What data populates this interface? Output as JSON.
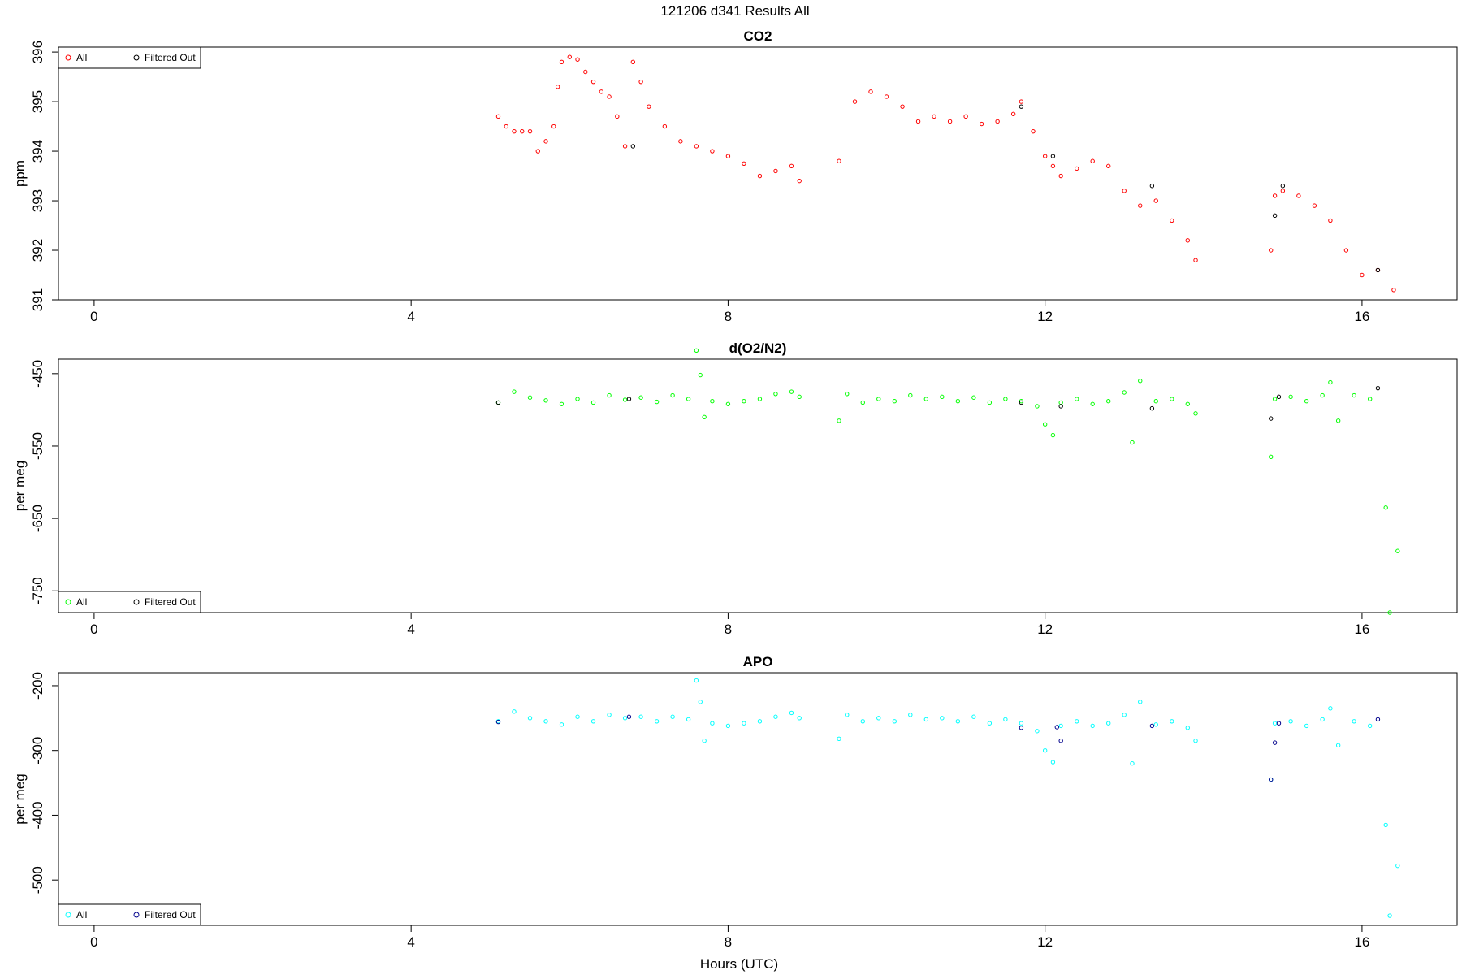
{
  "main_title": "121206   d341   Results All",
  "xlabel": "Hours (UTC)",
  "chart_data": [
    {
      "type": "scatter",
      "title": "CO2",
      "ylabel": "ppm",
      "xlim": [
        -0.45,
        17.2
      ],
      "ylim": [
        391,
        396.1
      ],
      "xticks": [
        0,
        4,
        8,
        12,
        16
      ],
      "xtick_labels": [
        "0",
        "4",
        "8",
        "12",
        "16"
      ],
      "yticks": [
        391,
        392,
        393,
        394,
        395,
        396
      ],
      "ytick_labels": [
        "391",
        "392",
        "393",
        "394",
        "395",
        "396"
      ],
      "legend_position": "top-left",
      "series": [
        {
          "name": "All",
          "color": "#ff0000",
          "points": [
            [
              5.1,
              394.7
            ],
            [
              5.2,
              394.5
            ],
            [
              5.3,
              394.4
            ],
            [
              5.4,
              394.4
            ],
            [
              5.5,
              394.4
            ],
            [
              5.6,
              394.0
            ],
            [
              5.7,
              394.2
            ],
            [
              5.8,
              394.5
            ],
            [
              5.85,
              395.3
            ],
            [
              5.9,
              395.8
            ],
            [
              6.0,
              395.9
            ],
            [
              6.1,
              395.85
            ],
            [
              6.2,
              395.6
            ],
            [
              6.3,
              395.4
            ],
            [
              6.4,
              395.2
            ],
            [
              6.5,
              395.1
            ],
            [
              6.6,
              394.7
            ],
            [
              6.7,
              394.1
            ],
            [
              6.8,
              395.8
            ],
            [
              6.9,
              395.4
            ],
            [
              7.0,
              394.9
            ],
            [
              7.2,
              394.5
            ],
            [
              7.4,
              394.2
            ],
            [
              7.6,
              394.1
            ],
            [
              7.8,
              394.0
            ],
            [
              8.0,
              393.9
            ],
            [
              8.2,
              393.75
            ],
            [
              8.4,
              393.5
            ],
            [
              8.6,
              393.6
            ],
            [
              8.8,
              393.7
            ],
            [
              8.9,
              393.4
            ],
            [
              9.4,
              393.8
            ],
            [
              9.6,
              395.0
            ],
            [
              9.8,
              395.2
            ],
            [
              10.0,
              395.1
            ],
            [
              10.2,
              394.9
            ],
            [
              10.4,
              394.6
            ],
            [
              10.6,
              394.7
            ],
            [
              10.8,
              394.6
            ],
            [
              11.0,
              394.7
            ],
            [
              11.2,
              394.55
            ],
            [
              11.4,
              394.6
            ],
            [
              11.6,
              394.75
            ],
            [
              11.7,
              395.0
            ],
            [
              11.85,
              394.4
            ],
            [
              12.0,
              393.9
            ],
            [
              12.1,
              393.7
            ],
            [
              12.2,
              393.5
            ],
            [
              12.4,
              393.65
            ],
            [
              12.6,
              393.8
            ],
            [
              12.8,
              393.7
            ],
            [
              13.0,
              393.2
            ],
            [
              13.2,
              392.9
            ],
            [
              13.4,
              393.0
            ],
            [
              13.6,
              392.6
            ],
            [
              13.8,
              392.2
            ],
            [
              13.9,
              391.8
            ],
            [
              14.85,
              392.0
            ],
            [
              14.9,
              393.1
            ],
            [
              15.0,
              393.2
            ],
            [
              15.2,
              393.1
            ],
            [
              15.4,
              392.9
            ],
            [
              15.6,
              392.6
            ],
            [
              15.8,
              392.0
            ],
            [
              16.0,
              391.5
            ],
            [
              16.2,
              391.6
            ],
            [
              16.4,
              391.2
            ]
          ]
        },
        {
          "name": "Filtered Out",
          "color": "#000000",
          "points": [
            [
              6.8,
              394.1
            ],
            [
              11.7,
              394.9
            ],
            [
              12.1,
              393.9
            ],
            [
              13.35,
              393.3
            ],
            [
              14.9,
              392.7
            ],
            [
              15.0,
              393.3
            ],
            [
              16.2,
              391.6
            ]
          ]
        }
      ]
    },
    {
      "type": "scatter",
      "title": "d(O2/N2)",
      "ylabel": "per meg",
      "xlim": [
        -0.45,
        17.2
      ],
      "ylim": [
        -780,
        -430
      ],
      "xticks": [
        0,
        4,
        8,
        12,
        16
      ],
      "xtick_labels": [
        "0",
        "4",
        "8",
        "12",
        "16"
      ],
      "yticks": [
        -750,
        -650,
        -550,
        -450
      ],
      "ytick_labels": [
        "-750",
        "-650",
        "-550",
        "-450"
      ],
      "legend_position": "bottom-left",
      "series": [
        {
          "name": "All",
          "color": "#00ff00",
          "points": [
            [
              5.1,
              -490
            ],
            [
              5.3,
              -475
            ],
            [
              5.5,
              -483
            ],
            [
              5.7,
              -487
            ],
            [
              5.9,
              -492
            ],
            [
              6.1,
              -485
            ],
            [
              6.3,
              -490
            ],
            [
              6.5,
              -480
            ],
            [
              6.7,
              -486
            ],
            [
              6.9,
              -483
            ],
            [
              7.1,
              -489
            ],
            [
              7.3,
              -480
            ],
            [
              7.5,
              -485
            ],
            [
              7.6,
              -418
            ],
            [
              7.65,
              -452
            ],
            [
              7.7,
              -510
            ],
            [
              7.8,
              -488
            ],
            [
              8.0,
              -492
            ],
            [
              8.2,
              -488
            ],
            [
              8.4,
              -485
            ],
            [
              8.6,
              -478
            ],
            [
              8.8,
              -475
            ],
            [
              8.9,
              -482
            ],
            [
              9.4,
              -515
            ],
            [
              9.5,
              -478
            ],
            [
              9.7,
              -490
            ],
            [
              9.9,
              -485
            ],
            [
              10.1,
              -488
            ],
            [
              10.3,
              -480
            ],
            [
              10.5,
              -485
            ],
            [
              10.7,
              -482
            ],
            [
              10.9,
              -488
            ],
            [
              11.1,
              -483
            ],
            [
              11.3,
              -490
            ],
            [
              11.5,
              -485
            ],
            [
              11.7,
              -488
            ],
            [
              11.9,
              -495
            ],
            [
              12.0,
              -520
            ],
            [
              12.1,
              -535
            ],
            [
              12.2,
              -490
            ],
            [
              12.4,
              -485
            ],
            [
              12.6,
              -492
            ],
            [
              12.8,
              -488
            ],
            [
              13.0,
              -476
            ],
            [
              13.1,
              -545
            ],
            [
              13.2,
              -460
            ],
            [
              13.4,
              -488
            ],
            [
              13.6,
              -485
            ],
            [
              13.8,
              -492
            ],
            [
              13.9,
              -505
            ],
            [
              14.85,
              -565
            ],
            [
              14.9,
              -485
            ],
            [
              15.1,
              -482
            ],
            [
              15.3,
              -488
            ],
            [
              15.5,
              -480
            ],
            [
              15.6,
              -462
            ],
            [
              15.7,
              -515
            ],
            [
              15.9,
              -480
            ],
            [
              16.1,
              -485
            ],
            [
              16.3,
              -635
            ],
            [
              16.35,
              -780
            ],
            [
              16.45,
              -695
            ]
          ]
        },
        {
          "name": "Filtered Out",
          "color": "#000000",
          "points": [
            [
              5.1,
              -490
            ],
            [
              6.75,
              -485
            ],
            [
              11.7,
              -490
            ],
            [
              12.2,
              -495
            ],
            [
              13.35,
              -498
            ],
            [
              14.85,
              -512
            ],
            [
              14.95,
              -482
            ],
            [
              16.2,
              -470
            ]
          ]
        }
      ]
    },
    {
      "type": "scatter",
      "title": "APO",
      "ylabel": "per meg",
      "xlim": [
        -0.45,
        17.2
      ],
      "ylim": [
        -570,
        -180
      ],
      "xticks": [
        0,
        4,
        8,
        12,
        16
      ],
      "xtick_labels": [
        "0",
        "4",
        "8",
        "12",
        "16"
      ],
      "yticks": [
        -500,
        -400,
        -300,
        -200
      ],
      "ytick_labels": [
        "-500",
        "-400",
        "-300",
        "-200"
      ],
      "legend_position": "bottom-left",
      "series": [
        {
          "name": "All",
          "color": "#00ffff",
          "points": [
            [
              5.1,
              -255
            ],
            [
              5.3,
              -240
            ],
            [
              5.5,
              -250
            ],
            [
              5.7,
              -255
            ],
            [
              5.9,
              -260
            ],
            [
              6.1,
              -248
            ],
            [
              6.3,
              -255
            ],
            [
              6.5,
              -245
            ],
            [
              6.7,
              -250
            ],
            [
              6.9,
              -248
            ],
            [
              7.1,
              -255
            ],
            [
              7.3,
              -248
            ],
            [
              7.5,
              -252
            ],
            [
              7.6,
              -192
            ],
            [
              7.65,
              -225
            ],
            [
              7.7,
              -285
            ],
            [
              7.8,
              -258
            ],
            [
              8.0,
              -262
            ],
            [
              8.2,
              -258
            ],
            [
              8.4,
              -255
            ],
            [
              8.6,
              -248
            ],
            [
              8.8,
              -242
            ],
            [
              8.9,
              -250
            ],
            [
              9.4,
              -282
            ],
            [
              9.5,
              -245
            ],
            [
              9.7,
              -255
            ],
            [
              9.9,
              -250
            ],
            [
              10.1,
              -255
            ],
            [
              10.3,
              -245
            ],
            [
              10.5,
              -252
            ],
            [
              10.7,
              -250
            ],
            [
              10.9,
              -255
            ],
            [
              11.1,
              -248
            ],
            [
              11.3,
              -258
            ],
            [
              11.5,
              -252
            ],
            [
              11.7,
              -258
            ],
            [
              11.9,
              -270
            ],
            [
              12.0,
              -300
            ],
            [
              12.1,
              -318
            ],
            [
              12.2,
              -262
            ],
            [
              12.4,
              -255
            ],
            [
              12.6,
              -262
            ],
            [
              12.8,
              -258
            ],
            [
              13.0,
              -245
            ],
            [
              13.1,
              -320
            ],
            [
              13.2,
              -225
            ],
            [
              13.4,
              -260
            ],
            [
              13.6,
              -255
            ],
            [
              13.8,
              -265
            ],
            [
              13.9,
              -285
            ],
            [
              14.85,
              -345
            ],
            [
              14.9,
              -258
            ],
            [
              15.1,
              -255
            ],
            [
              15.3,
              -262
            ],
            [
              15.5,
              -252
            ],
            [
              15.6,
              -235
            ],
            [
              15.7,
              -292
            ],
            [
              15.9,
              -255
            ],
            [
              16.1,
              -262
            ],
            [
              16.3,
              -415
            ],
            [
              16.35,
              -555
            ],
            [
              16.45,
              -478
            ]
          ]
        },
        {
          "name": "Filtered Out",
          "color": "#00008b",
          "points": [
            [
              5.1,
              -256
            ],
            [
              6.75,
              -248
            ],
            [
              11.7,
              -265
            ],
            [
              12.15,
              -264
            ],
            [
              12.2,
              -285
            ],
            [
              13.35,
              -262
            ],
            [
              14.85,
              -345
            ],
            [
              14.9,
              -288
            ],
            [
              14.95,
              -258
            ],
            [
              16.2,
              -252
            ]
          ]
        }
      ]
    }
  ]
}
